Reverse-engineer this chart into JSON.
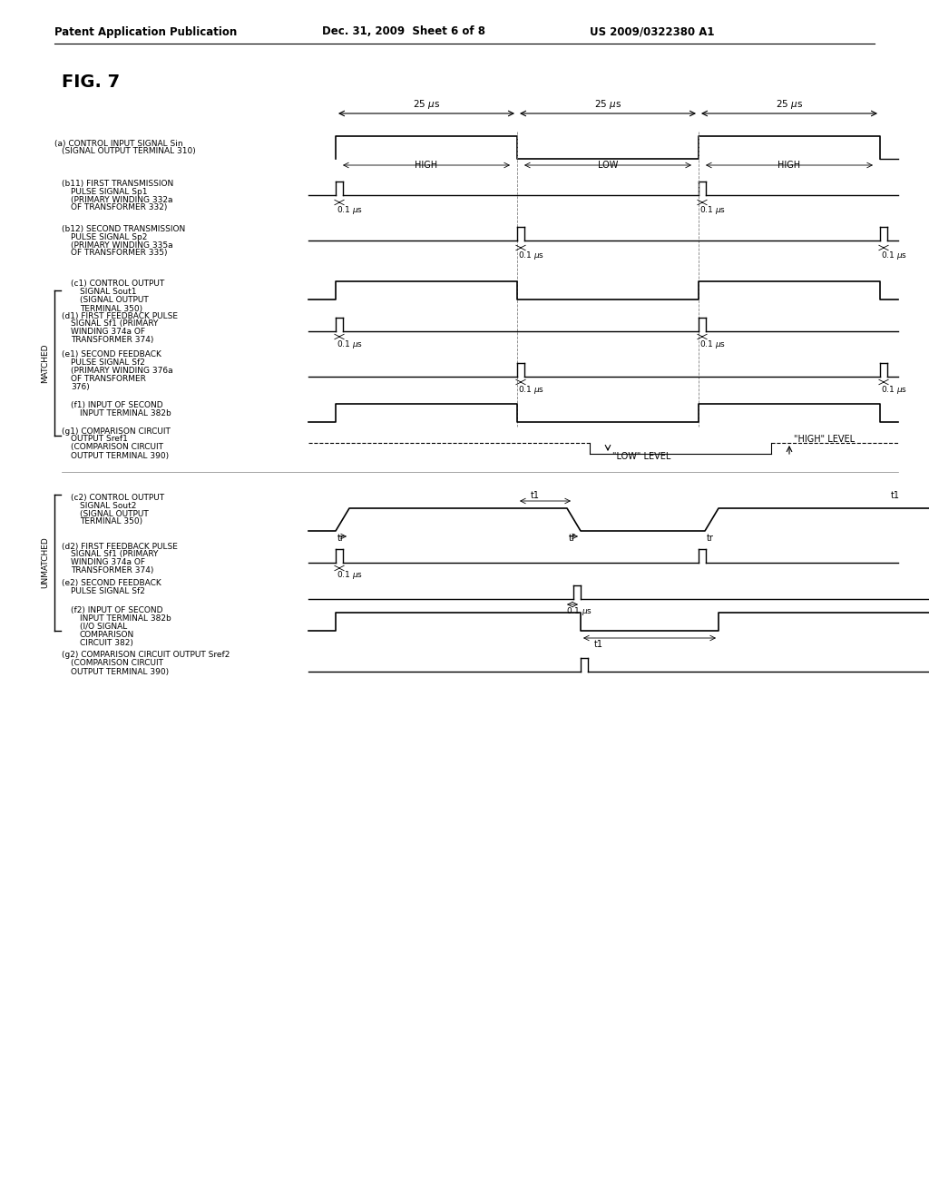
{
  "title": "FIG. 7",
  "header_left": "Patent Application Publication",
  "header_mid": "Dec. 31, 2009  Sheet 6 of 8",
  "header_right": "US 2009/0322380 A1",
  "bg_color": "#ffffff",
  "text_color": "#000000"
}
